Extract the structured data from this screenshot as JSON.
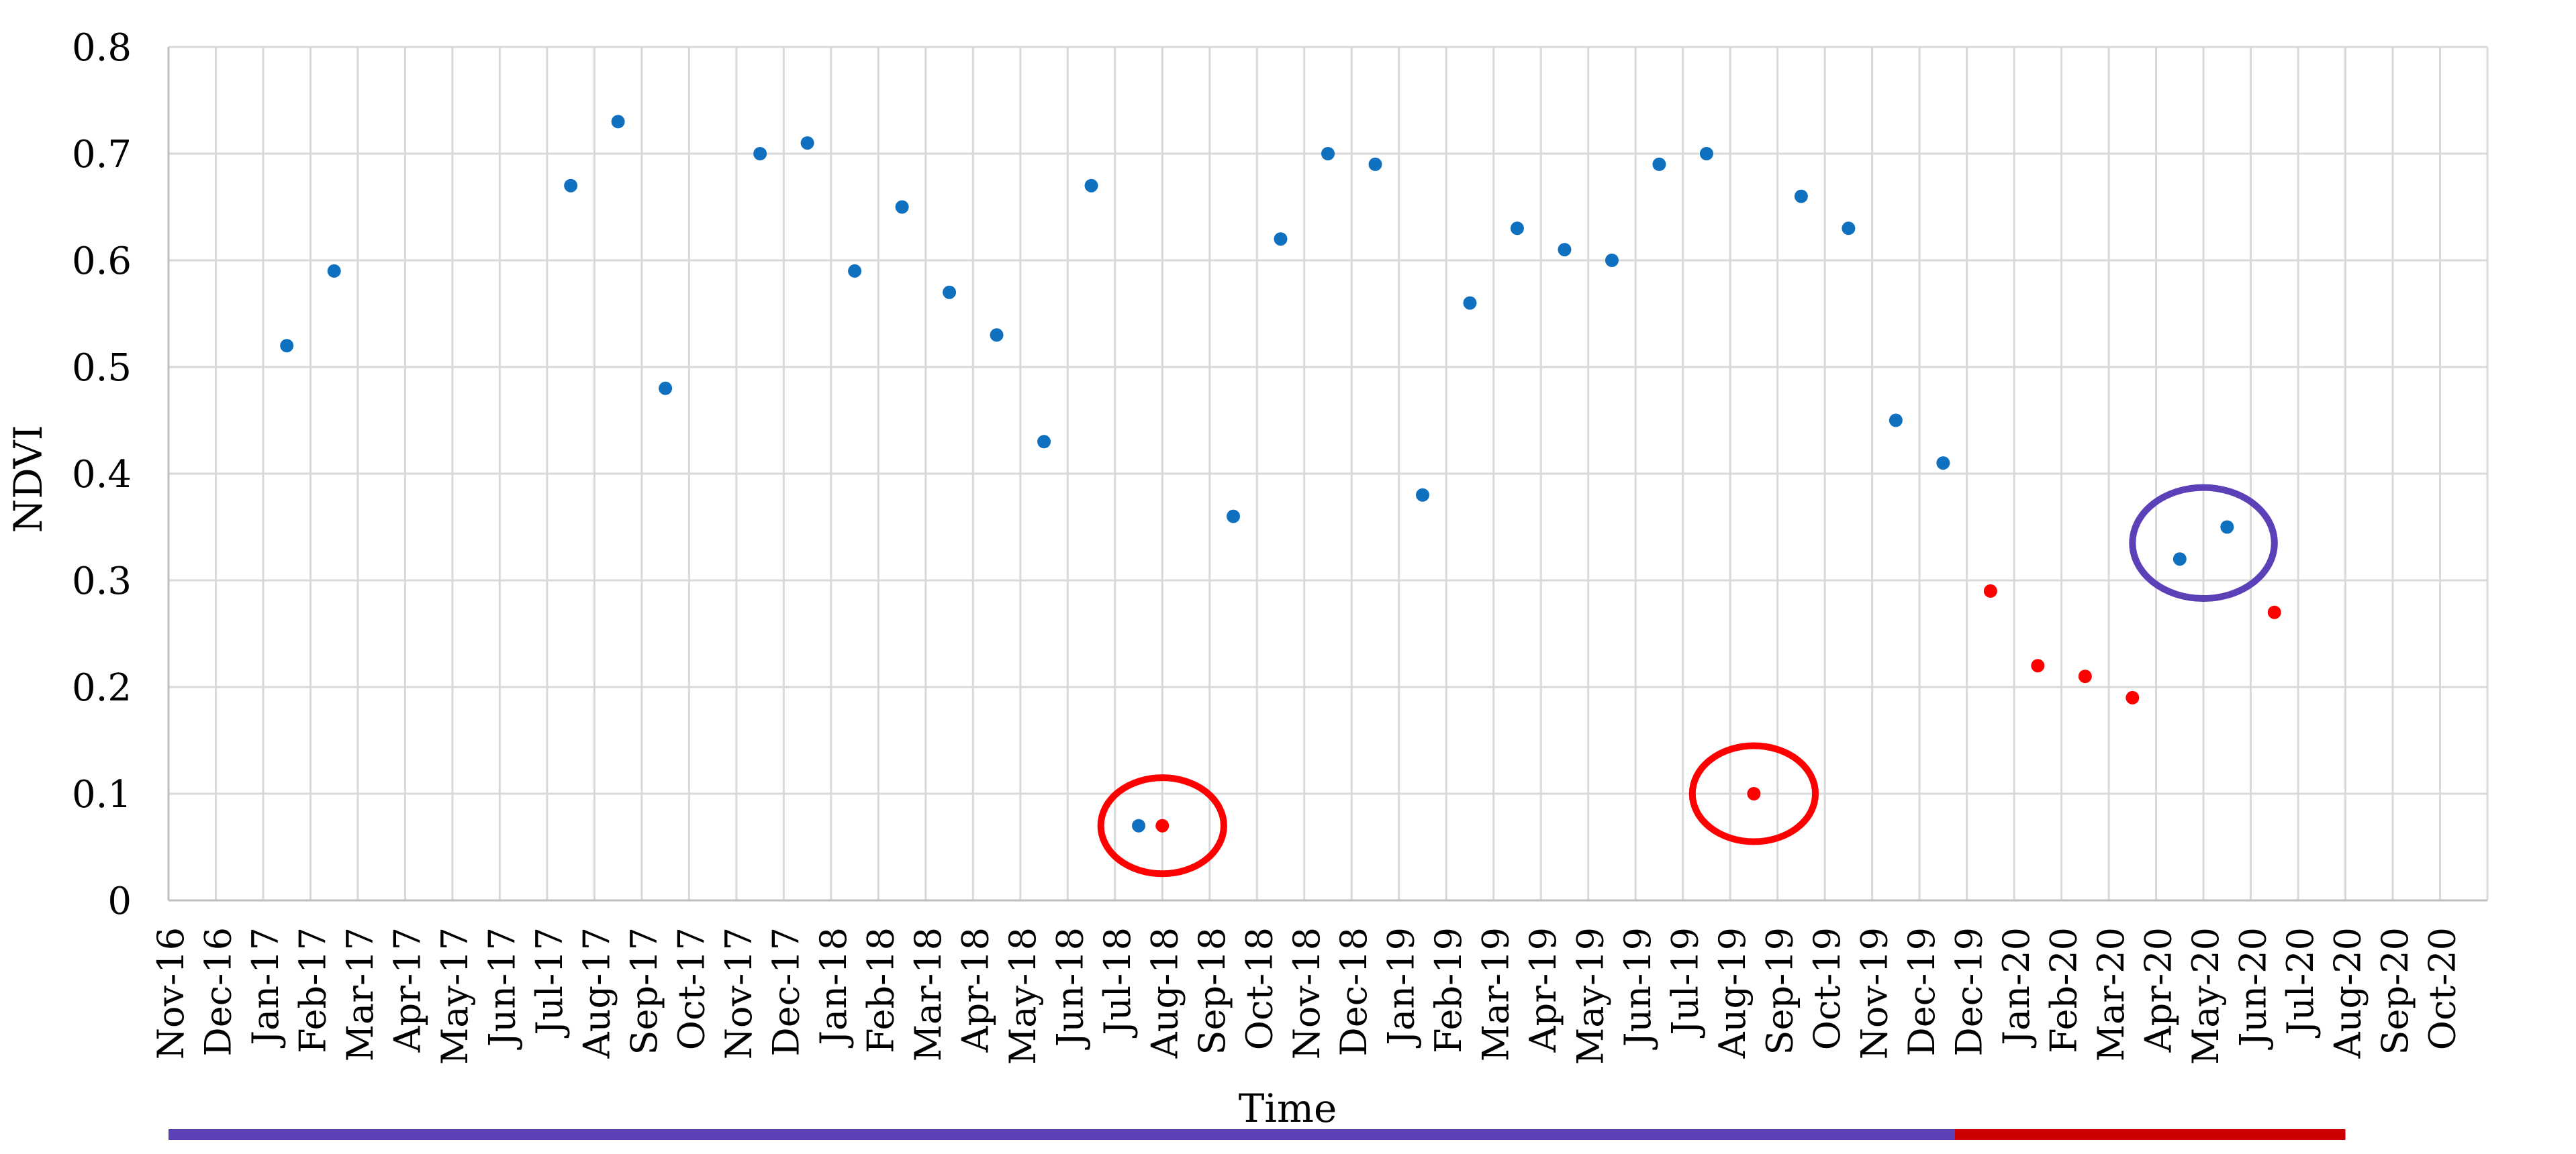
{
  "chart_data": {
    "type": "scatter",
    "xlabel": "Time",
    "ylabel": "NDVI",
    "ylim": [
      0,
      0.8
    ],
    "yticks": [
      "0",
      "0.1",
      "0.2",
      "0.3",
      "0.4",
      "0.5",
      "0.6",
      "0.7",
      "0.8"
    ],
    "xcategories": [
      "Nov-16",
      "Dec-16",
      "Jan-17",
      "Feb-17",
      "Mar-17",
      "Apr-17",
      "May-17",
      "Jun-17",
      "Jul-17",
      "Aug-17",
      "Sep-17",
      "Oct-17",
      "Nov-17",
      "Dec-17",
      "Jan-18",
      "Feb-18",
      "Mar-18",
      "Apr-18",
      "May-18",
      "Jun-18",
      "Jul-18",
      "Aug-18",
      "Sep-18",
      "Oct-18",
      "Nov-18",
      "Dec-18",
      "Jan-19",
      "Feb-19",
      "Mar-19",
      "Apr-19",
      "May-19",
      "Jun-19",
      "Jul-19",
      "Aug-19",
      "Sep-19",
      "Oct-19",
      "Nov-19",
      "Dec-19",
      "Dec-19",
      "Jan-20",
      "Feb-20",
      "Mar-20",
      "Apr-20",
      "May-20",
      "Jun-20",
      "Jul-20",
      "Aug-20",
      "Sep-20",
      "Oct-20"
    ],
    "grid": true,
    "series": [
      {
        "color": "#1070c0",
        "x": [
          2.5,
          3.5,
          8.5,
          9.5,
          10.5,
          12.5,
          13.5,
          14.5,
          15.5,
          16.5,
          17.5,
          18.5,
          19.5,
          20.5,
          22.5,
          23.5,
          24.5,
          25.5,
          26.5,
          27.5,
          28.5,
          29.5,
          30.5,
          31.5,
          32.5,
          34.5,
          35.5,
          36.5,
          37.5,
          42.5,
          43.5
        ],
        "values": [
          0.52,
          0.59,
          0.67,
          0.73,
          0.48,
          0.7,
          0.71,
          0.59,
          0.65,
          0.57,
          0.53,
          0.43,
          0.67,
          0.07,
          0.36,
          0.62,
          0.7,
          0.69,
          0.38,
          0.56,
          0.63,
          0.61,
          0.6,
          0.69,
          0.7,
          0.66,
          0.63,
          0.45,
          0.41,
          0.32,
          0.35
        ]
      },
      {
        "color": "#ff0000",
        "x": [
          21.0,
          33.5,
          38.5,
          39.5,
          40.5,
          41.5,
          44.5
        ],
        "values": [
          0.07,
          0.1,
          0.29,
          0.22,
          0.21,
          0.19,
          0.27
        ]
      }
    ],
    "highlights": [
      {
        "color": "#ff0000",
        "x": 21.0,
        "y": 0.07,
        "rx_cat": 1.3,
        "ry_val": 0.045
      },
      {
        "color": "#ff0000",
        "x": 33.5,
        "y": 0.1,
        "rx_cat": 1.3,
        "ry_val": 0.045
      },
      {
        "color": "#5b40b8",
        "x": 43.0,
        "y": 0.335,
        "rx_cat": 1.5,
        "ry_val": 0.052
      }
    ],
    "period_bars": [
      {
        "color": "#5b40b8",
        "from": 0,
        "to": 37.75
      },
      {
        "color": "#cc0000",
        "from": 37.75,
        "to": 46
      }
    ]
  }
}
